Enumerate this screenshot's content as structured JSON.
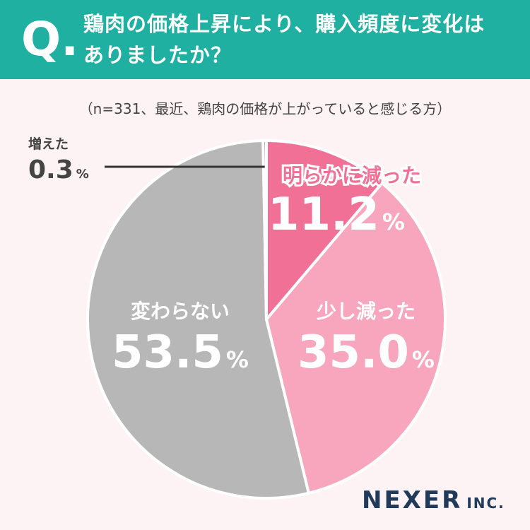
{
  "header": {
    "q_mark": "Q.",
    "question_line1": "鶏肉の価格上昇により、購入頻度に変化は",
    "question_line2": "ありましたか？"
  },
  "subtitle": "（n=331、最近、鶏肉の価格が上がっていると感じる方）",
  "brand": {
    "name": "NEXER",
    "suffix": "INC."
  },
  "colors": {
    "header_bg": "#1fb0a2",
    "page_bg": "#fdf3f5",
    "decreased_clearly": "#f07096",
    "decreased_slightly": "#f8a6bd",
    "unchanged": "#b7b7b7",
    "increased": "#8f8f8f"
  },
  "chart_data": {
    "type": "pie",
    "title": "鶏肉の価格上昇により、購入頻度に変化はありましたか？",
    "unit": "%",
    "start": "12 o'clock, clockwise",
    "slices": [
      {
        "label": "明らかに減った",
        "value": 11.2,
        "display": "11.2",
        "color": "#f07096"
      },
      {
        "label": "少し減った",
        "value": 35.0,
        "display": "35.0",
        "color": "#f8a6bd"
      },
      {
        "label": "変わらない",
        "value": 53.5,
        "display": "53.5",
        "color": "#b7b7b7"
      },
      {
        "label": "増えた",
        "value": 0.3,
        "display": "0.3",
        "color": "#8f8f8f"
      }
    ]
  }
}
